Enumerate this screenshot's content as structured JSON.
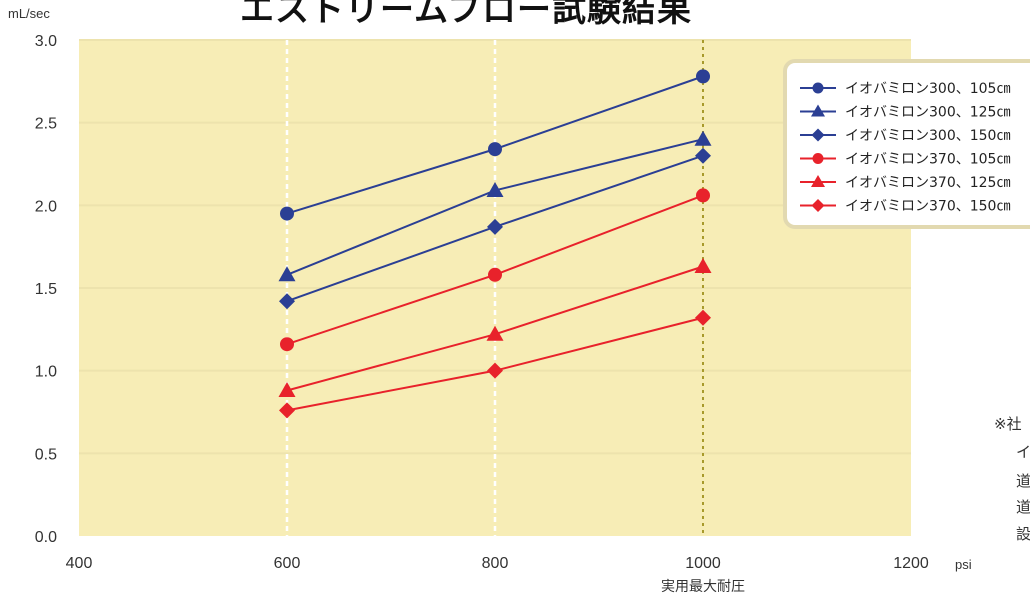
{
  "chart_data": {
    "type": "line",
    "title": "エストリームフロー試験結果",
    "ylabel": "mL/sec",
    "xlabel": "psi",
    "x_annotation": "実用最大耐圧",
    "xlim": [
      400,
      1200
    ],
    "ylim": [
      0.0,
      3.0
    ],
    "x_ticks": [
      "400",
      "600",
      "800",
      "1000",
      "1200"
    ],
    "y_ticks": [
      "0.0",
      "0.5",
      "1.0",
      "1.5",
      "2.0",
      "2.5",
      "3.0"
    ],
    "x": [
      600,
      800,
      1000
    ],
    "legend_position": "top-right",
    "series": [
      {
        "name": "イオバミロン300、105㎝",
        "color": "#2b3f94",
        "marker": "circle",
        "values": [
          1.95,
          2.34,
          2.78
        ]
      },
      {
        "name": "イオバミロン300、125㎝",
        "color": "#2b3f94",
        "marker": "triangle",
        "values": [
          1.58,
          2.09,
          2.4
        ]
      },
      {
        "name": "イオバミロン300、150㎝",
        "color": "#2b3f94",
        "marker": "diamond",
        "values": [
          1.42,
          1.87,
          2.3
        ]
      },
      {
        "name": "イオバミロン370、105㎝",
        "color": "#e8222b",
        "marker": "circle",
        "values": [
          1.16,
          1.58,
          2.06
        ]
      },
      {
        "name": "イオバミロン370、125㎝",
        "color": "#e8222b",
        "marker": "triangle",
        "values": [
          0.88,
          1.22,
          1.63
        ]
      },
      {
        "name": "イオバミロン370、150㎝",
        "color": "#e8222b",
        "marker": "diamond",
        "values": [
          0.76,
          1.0,
          1.32
        ]
      }
    ],
    "colors": {
      "plot_bg": "#f7edb6",
      "gridline": "#ffffff",
      "hgrid": "#ede3ad",
      "max_line": "#a89a2c",
      "axis_text": "#333333"
    },
    "side_note": [
      "※社",
      "イ",
      "道",
      "道",
      "設"
    ]
  }
}
